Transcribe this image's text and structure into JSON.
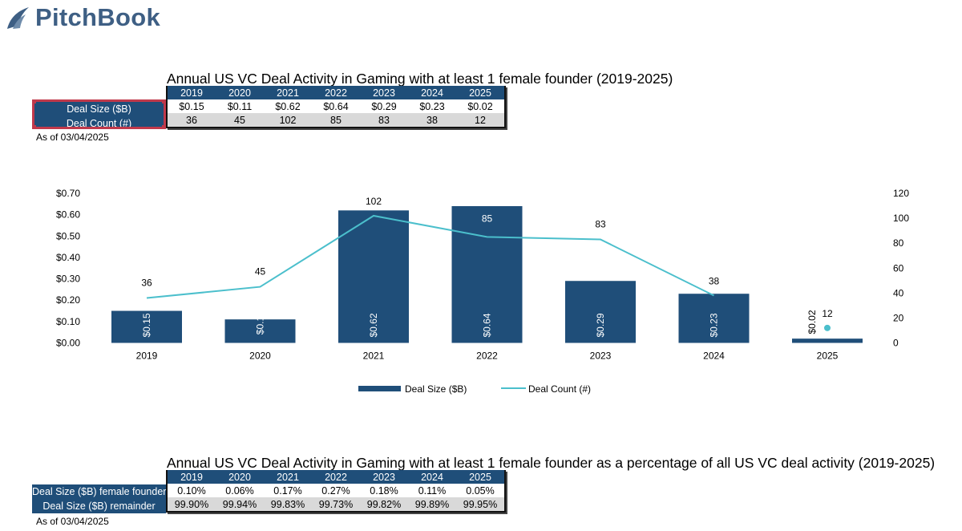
{
  "brand": {
    "name": "PitchBook"
  },
  "top_table": {
    "title": "Annual US VC Deal Activity in Gaming with at least 1 female founder (2019-2025)",
    "years": [
      "2019",
      "2020",
      "2021",
      "2022",
      "2023",
      "2024",
      "2025"
    ],
    "rows": [
      {
        "label": "Deal Size ($B)",
        "values": [
          "$0.15",
          "$0.11",
          "$0.62",
          "$0.64",
          "$0.29",
          "$0.23",
          "$0.02"
        ]
      },
      {
        "label": "Deal Count (#)",
        "values": [
          "36",
          "45",
          "102",
          "85",
          "83",
          "38",
          "12"
        ]
      }
    ],
    "as_of": "As of 03/04/2025"
  },
  "bottom_table": {
    "title": "Annual US VC Deal Activity in Gaming with at least 1 female founder as a percentage of all US VC deal activity (2019-2025)",
    "years": [
      "2019",
      "2020",
      "2021",
      "2022",
      "2023",
      "2024",
      "2025"
    ],
    "rows": [
      {
        "label": "Deal Size ($B) female founder",
        "values": [
          "0.10%",
          "0.06%",
          "0.17%",
          "0.27%",
          "0.18%",
          "0.11%",
          "0.05%"
        ]
      },
      {
        "label": "Deal Size ($B) remainder",
        "values": [
          "99.90%",
          "99.94%",
          "99.83%",
          "99.73%",
          "99.82%",
          "99.89%",
          "99.95%"
        ]
      }
    ],
    "as_of": "As of 03/04/2025"
  },
  "chart_data": {
    "type": "bar+line",
    "categories": [
      "2019",
      "2020",
      "2021",
      "2022",
      "2023",
      "2024",
      "2025"
    ],
    "series": [
      {
        "name": "Deal Size ($B)",
        "type": "bar",
        "axis": "left",
        "values": [
          0.15,
          0.11,
          0.62,
          0.64,
          0.29,
          0.23,
          0.02
        ],
        "labels": [
          "$0.15",
          "$0.1",
          "$0.62",
          "$0.64",
          "$0.29",
          "$0.23",
          "$0.02"
        ],
        "color": "#1f4e79"
      },
      {
        "name": "Deal Count (#)",
        "type": "line",
        "axis": "right",
        "values": [
          36,
          45,
          102,
          85,
          83,
          38,
          12
        ],
        "labels": [
          "36",
          "45",
          "102",
          "85",
          "83",
          "38",
          "12"
        ],
        "color": "#4bbfcc",
        "last_point_disconnected": true
      }
    ],
    "left_axis": {
      "ylim": [
        0,
        0.7
      ],
      "ticks": [
        "$0.00",
        "$0.10",
        "$0.20",
        "$0.30",
        "$0.40",
        "$0.50",
        "$0.60",
        "$0.70"
      ]
    },
    "right_axis": {
      "ylim": [
        0,
        120
      ],
      "ticks": [
        "0",
        "20",
        "40",
        "60",
        "80",
        "100",
        "120"
      ]
    },
    "legend": "bottom",
    "grid": false
  }
}
